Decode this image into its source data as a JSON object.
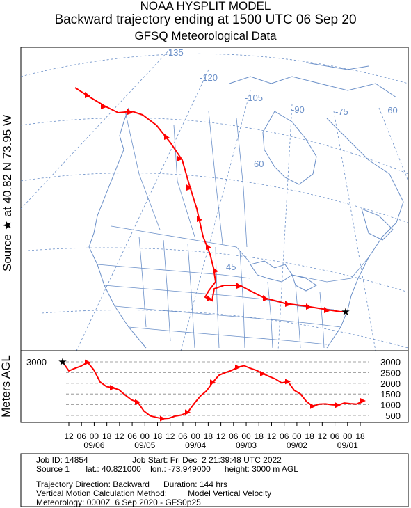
{
  "title": {
    "line1": "NOAA HYSPLIT MODEL",
    "line2": "Backward trajectory ending at 1500 UTC 06 Sep 20",
    "line3": "GFSQ Meteorological Data"
  },
  "side_label": {
    "text": "Source ★ at 40.82 N 73.95 W"
  },
  "map": {
    "longitude_labels": [
      "135",
      "-120",
      "-105",
      "-90",
      "-75",
      "-60"
    ],
    "latitude_labels": [
      "60",
      "45"
    ],
    "colors": {
      "trajectory": "#ff0000",
      "grid": "#6a8fc8",
      "land": "#6a8fc8"
    },
    "source_marker": "star-icon"
  },
  "chart_data": {
    "type": "line",
    "title": "",
    "ylabel": "Meters AGL",
    "y_ticks": [
      "3000",
      "2500",
      "2000",
      "1500",
      "1000",
      "500"
    ],
    "left_label": "3000",
    "x_hour_ticks": [
      "12",
      "06",
      "00",
      "18",
      "12",
      "06",
      "00",
      "18",
      "12",
      "06",
      "00",
      "18",
      "12",
      "06",
      "00",
      "18",
      "12",
      "06",
      "00",
      "18",
      "12",
      "06",
      "00",
      "18"
    ],
    "x_date_ticks": [
      "09/06",
      "09/05",
      "09/04",
      "09/03",
      "09/02",
      "09/01"
    ],
    "series": [
      {
        "hours_before_start": [
          0,
          3,
          6,
          9,
          12,
          15,
          18,
          21,
          24,
          27,
          30,
          33,
          36,
          39,
          42,
          45,
          48,
          51,
          54,
          57,
          60,
          63,
          66,
          69,
          72,
          75,
          78,
          81,
          84,
          87,
          90,
          93,
          96,
          99,
          102,
          105,
          108,
          111,
          114,
          117,
          120,
          123,
          126,
          129,
          132,
          135,
          138,
          141,
          144
        ],
        "heights_m_agl": [
          3000,
          2580,
          2700,
          2810,
          2980,
          2620,
          2060,
          1850,
          1790,
          1700,
          1450,
          1230,
          1120,
          700,
          480,
          410,
          350,
          370,
          470,
          520,
          650,
          1050,
          1400,
          1650,
          2050,
          2380,
          2500,
          2600,
          2750,
          2820,
          2700,
          2600,
          2450,
          2320,
          2200,
          2020,
          2080,
          1680,
          1500,
          1140,
          930,
          1030,
          1040,
          1000,
          980,
          1080,
          1050,
          1030,
          1180
        ]
      }
    ]
  },
  "info": {
    "line1": "Job ID: 14854                   Job Start: Fri Dec  2 21:39:48 UTC 2022",
    "line2": "Source 1       lat.: 40.821000    lon.: -73.949000      height: 3000 m AGL",
    "line3": "Trajectory Direction: Backward      Duration: 144 hrs",
    "line4": "Vertical Motion Calculation Method:         Model Vertical Velocity",
    "line5": "Meteorology: 0000Z  6 Sep 2020 - GFS0p25"
  }
}
